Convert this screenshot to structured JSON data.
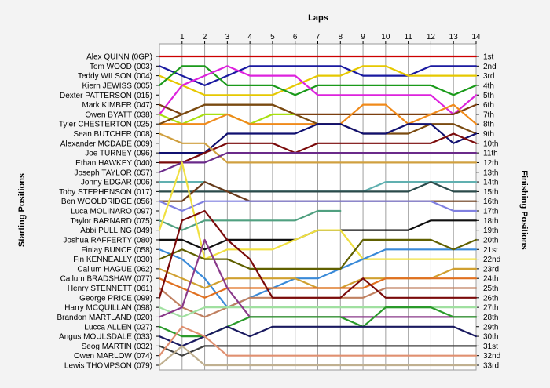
{
  "chart_data": {
    "type": "line",
    "title": "",
    "x_axis_title": "Laps",
    "left_axis_title": "Starting Positions",
    "right_axis_title": "Finishing Positions",
    "laps": [
      1,
      2,
      3,
      4,
      5,
      6,
      7,
      8,
      9,
      10,
      11,
      12,
      13,
      14
    ],
    "drivers": [
      "Alex QUINN (0GP)",
      "Tom WOOD (003)",
      "Teddy WILSON (004)",
      "Kiern JEWISS (005)",
      "Dexter PATTERSON (015)",
      "Mark KIMBER (047)",
      "Owen BYATT (038)",
      "Tyler CHESTERTON (025)",
      "Sean BUTCHER (008)",
      "Alexander MCDADE (009)",
      "Joe TURNEY (096)",
      "Ethan HAWKEY (040)",
      "Joseph TAYLOR (057)",
      "Jonny EDGAR (006)",
      "Toby STEPHENSON (017)",
      "Ben WOOLDRIDGE (056)",
      "Luca MOLINARO (097)",
      "Taylor BARNARD (075)",
      "Abbi PULLING (049)",
      "Joshua RAFFERTY (080)",
      "Finlay BUNCE (058)",
      "Fin KENNEALLY (030)",
      "Callum HAGUE (062)",
      "Callum BRADSHAW (077)",
      "Henry STENNETT (061)",
      "George PRICE (099)",
      "Harry MCQUILLAN (098)",
      "Brandon MARTLAND (020)",
      "Lucca ALLEN (027)",
      "Angus MOULSDALE (033)",
      "Seog MARTIN (032)",
      "Owen MARLOW (074)",
      "Lewis THOMPSON (079)"
    ],
    "finishing_positions": [
      "1st",
      "2nd",
      "3rd",
      "4th",
      "5th",
      "6th",
      "7th",
      "8th",
      "9th",
      "10th",
      "11th",
      "12th",
      "13th",
      "14th",
      "15th",
      "16th",
      "17th",
      "18th",
      "19th",
      "20th",
      "21st",
      "22nd",
      "23rd",
      "24th",
      "25th",
      "26th",
      "27th",
      "28th",
      "29th",
      "30th",
      "31st",
      "32nd",
      "33rd"
    ],
    "y_range": [
      1,
      33
    ],
    "x_range": [
      0,
      14
    ],
    "series": [
      {
        "color": "#cc0000",
        "positions": [
          1,
          1,
          1,
          1,
          1,
          1,
          1,
          1,
          1,
          1,
          1,
          1,
          1,
          1,
          1
        ]
      },
      {
        "color": "#1a1aa0",
        "positions": [
          2,
          3,
          4,
          3,
          2,
          2,
          2,
          2,
          2,
          3,
          3,
          3,
          2,
          2,
          2
        ]
      },
      {
        "color": "#e6c800",
        "positions": [
          3,
          4,
          5,
          5,
          5,
          5,
          4,
          3,
          3,
          2,
          2,
          3,
          3,
          3,
          3
        ]
      },
      {
        "color": "#1a9a1a",
        "positions": [
          4,
          2,
          2,
          4,
          4,
          4,
          5,
          4,
          4,
          4,
          4,
          4,
          4,
          5,
          4
        ]
      },
      {
        "color": "#dd22dd",
        "positions": [
          7,
          4,
          3,
          2,
          3,
          3,
          3,
          5,
          5,
          5,
          5,
          5,
          5,
          7,
          5
        ]
      },
      {
        "color": "#7b3f10",
        "positions": [
          6,
          7,
          6,
          6,
          6,
          6,
          7,
          7,
          7,
          7,
          7,
          7,
          7,
          7,
          6
        ]
      },
      {
        "color": "#a8e010",
        "positions": [
          7,
          8,
          7,
          7,
          8,
          7,
          7,
          null,
          null,
          null,
          null,
          null,
          null,
          null,
          null
        ]
      },
      {
        "color": "#f08a1a",
        "positions": [
          8,
          8,
          8,
          7,
          8,
          8,
          8,
          8,
          8,
          6,
          6,
          8,
          7,
          6,
          8
        ]
      },
      {
        "color": "#7a4a10",
        "positions": [
          8,
          7,
          6,
          6,
          6,
          6,
          7,
          8,
          8,
          9,
          9,
          9,
          8,
          8,
          9
        ]
      },
      {
        "color": "#101070",
        "positions": [
          11,
          11,
          11,
          9,
          9,
          9,
          9,
          8,
          8,
          9,
          9,
          8,
          8,
          10,
          9
        ]
      },
      {
        "color": "#7a0a0a",
        "positions": [
          12,
          12,
          11,
          10,
          10,
          10,
          11,
          10,
          10,
          10,
          10,
          10,
          10,
          9,
          10
        ]
      },
      {
        "color": "#d0a040",
        "positions": [
          9,
          10,
          10,
          12,
          12,
          12,
          12,
          12,
          12,
          12,
          12,
          12,
          12,
          12,
          12
        ]
      },
      {
        "color": "#6a2a8a",
        "positions": [
          13,
          12,
          12,
          11,
          11,
          11,
          11,
          11,
          11,
          11,
          11,
          11,
          11,
          11,
          11
        ]
      },
      {
        "color": "#60b0b0",
        "positions": [
          14,
          14,
          14,
          15,
          15,
          15,
          15,
          15,
          15,
          15,
          14,
          14,
          14,
          14,
          14
        ]
      },
      {
        "color": "#2a4a4a",
        "positions": [
          15,
          15,
          15,
          15,
          15,
          15,
          15,
          15,
          15,
          15,
          15,
          15,
          14,
          15,
          15
        ]
      },
      {
        "color": "#6a3a1a",
        "positions": [
          16,
          16,
          14,
          15,
          16,
          16,
          16,
          16,
          16,
          16,
          16,
          16,
          16,
          16,
          16
        ]
      },
      {
        "color": "#8080e0",
        "positions": [
          16,
          17,
          16,
          16,
          16,
          16,
          16,
          16,
          16,
          16,
          16,
          16,
          16,
          17,
          17
        ]
      },
      {
        "color": "#50a080",
        "positions": [
          18,
          19,
          18,
          18,
          18,
          18,
          18,
          17,
          17,
          null,
          null,
          null,
          null,
          null,
          null
        ]
      },
      {
        "color": "#101010",
        "positions": [
          20,
          20,
          21,
          20,
          20,
          20,
          20,
          19,
          19,
          19,
          19,
          19,
          18,
          18,
          18
        ]
      },
      {
        "color": "#f0e040",
        "positions": [
          19,
          12,
          22,
          21,
          21,
          21,
          20,
          19,
          19,
          22,
          22,
          22,
          22,
          22,
          22
        ]
      },
      {
        "color": "#3a8ad8",
        "positions": [
          21,
          22,
          24,
          27,
          26,
          25,
          24,
          24,
          23,
          22,
          21,
          21,
          21,
          21,
          21
        ]
      },
      {
        "color": "#606000",
        "positions": [
          22,
          21,
          22,
          22,
          23,
          23,
          23,
          23,
          23,
          20,
          20,
          20,
          20,
          21,
          20
        ]
      },
      {
        "color": "#d0a030",
        "positions": [
          23,
          24,
          25,
          24,
          24,
          24,
          24,
          25,
          25,
          24,
          24,
          24,
          24,
          23,
          23
        ]
      },
      {
        "color": "#e07020",
        "positions": [
          24,
          25,
          26,
          25,
          25,
          25,
          25,
          25,
          25,
          25,
          24,
          24,
          24,
          24,
          24
        ]
      },
      {
        "color": "#c08060",
        "positions": [
          25,
          27,
          28,
          27,
          26,
          26,
          26,
          26,
          26,
          26,
          25,
          25,
          25,
          25,
          25
        ]
      },
      {
        "color": "#7a0a0a",
        "positions": [
          26,
          18,
          17,
          20,
          22,
          26,
          26,
          26,
          26,
          24,
          26,
          26,
          26,
          26,
          26
        ]
      },
      {
        "color": "#a0e0a0",
        "positions": [
          27,
          28,
          27,
          27,
          27,
          27,
          27,
          27,
          27,
          27,
          27,
          27,
          27,
          27,
          27
        ]
      },
      {
        "color": "#8a3a8a",
        "positions": [
          28,
          27,
          20,
          25,
          28,
          28,
          28,
          28,
          28,
          28,
          28,
          28,
          28,
          28,
          28
        ]
      },
      {
        "color": "#2a9a2a",
        "positions": [
          29,
          30,
          30,
          29,
          28,
          28,
          28,
          28,
          28,
          29,
          27,
          27,
          27,
          28,
          28
        ]
      },
      {
        "color": "#1a1a60",
        "positions": [
          30,
          31,
          30,
          29,
          30,
          29,
          29,
          29,
          29,
          29,
          29,
          29,
          29,
          29,
          30
        ]
      },
      {
        "color": "#404040",
        "positions": [
          31,
          32,
          31,
          31,
          31,
          31,
          31,
          31,
          31,
          31,
          31,
          31,
          31,
          31,
          31
        ]
      },
      {
        "color": "#e09070",
        "positions": [
          32,
          29,
          30,
          32,
          32,
          32,
          32,
          32,
          32,
          32,
          32,
          32,
          32,
          32,
          32
        ]
      },
      {
        "color": "#c0b090",
        "positions": [
          33,
          31,
          33,
          33,
          33,
          33,
          33,
          33,
          33,
          33,
          33,
          33,
          33,
          33,
          33
        ]
      }
    ]
  }
}
